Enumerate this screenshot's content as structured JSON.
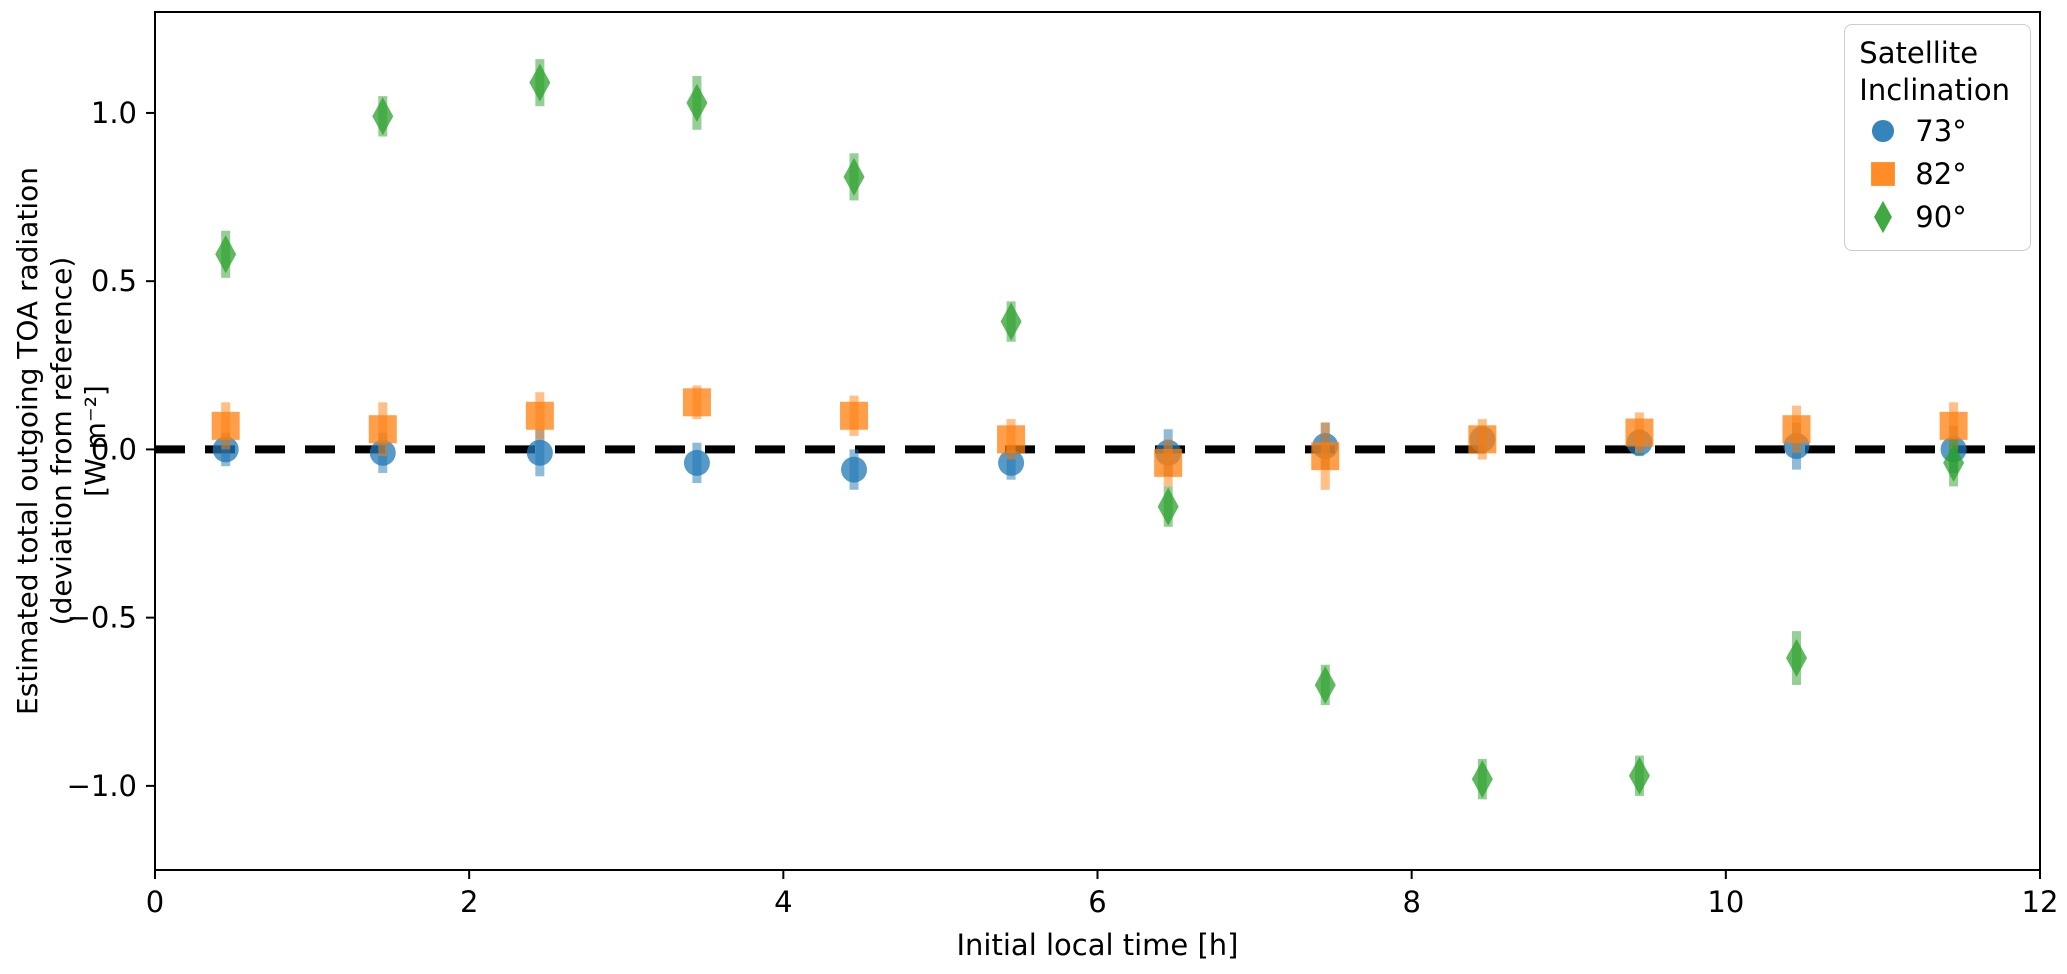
{
  "chart_data": {
    "type": "scatter",
    "title": "",
    "xlabel": "Initial local time [h]",
    "ylabel_lines": [
      "Estimated total outgoing TOA radiation",
      "(deviation from reference)",
      "[W m⁻²]"
    ],
    "xlim": [
      0,
      12
    ],
    "ylim": [
      -1.25,
      1.3
    ],
    "xticks": [
      {
        "v": 0,
        "label": "0"
      },
      {
        "v": 2,
        "label": "2"
      },
      {
        "v": 4,
        "label": "4"
      },
      {
        "v": 6,
        "label": "6"
      },
      {
        "v": 8,
        "label": "8"
      },
      {
        "v": 10,
        "label": "10"
      },
      {
        "v": 12,
        "label": "12"
      }
    ],
    "yticks": [
      {
        "v": -1.0,
        "label": "−1.0"
      },
      {
        "v": -0.5,
        "label": "−0.5"
      },
      {
        "v": 0.0,
        "label": "0.0"
      },
      {
        "v": 0.5,
        "label": "0.5"
      },
      {
        "v": 1.0,
        "label": "1.0"
      }
    ],
    "reference_line": {
      "y": 0,
      "style": "dashed",
      "color": "#000000"
    },
    "grid": false,
    "legend": {
      "position": "upper right",
      "title_lines": [
        "Satellite",
        "Inclination"
      ]
    },
    "x": [
      0.45,
      1.45,
      2.45,
      3.45,
      4.45,
      5.45,
      6.45,
      7.45,
      8.45,
      9.45,
      10.45,
      11.45
    ],
    "series": [
      {
        "name": "73°",
        "marker": "circle",
        "color": "#1f77b4",
        "y": [
          0.0,
          -0.01,
          -0.01,
          -0.04,
          -0.06,
          -0.04,
          -0.01,
          0.01,
          0.03,
          0.02,
          0.01,
          0.0
        ],
        "yerr": [
          0.05,
          0.06,
          0.07,
          0.06,
          0.06,
          0.05,
          0.07,
          0.07,
          0.04,
          0.04,
          0.07,
          0.07
        ]
      },
      {
        "name": "82°",
        "marker": "square",
        "color": "#ff7f0e",
        "y": [
          0.07,
          0.06,
          0.1,
          0.14,
          0.1,
          0.03,
          -0.04,
          -0.02,
          0.03,
          0.05,
          0.06,
          0.07
        ],
        "yerr": [
          0.07,
          0.08,
          0.07,
          0.05,
          0.06,
          0.06,
          0.07,
          0.1,
          0.06,
          0.06,
          0.07,
          0.07
        ]
      },
      {
        "name": "90°",
        "marker": "thin-diamond",
        "color": "#2ca02c",
        "y": [
          0.58,
          0.99,
          1.09,
          1.03,
          0.81,
          0.38,
          -0.17,
          -0.7,
          -0.98,
          -0.97,
          -0.62,
          -0.04
        ],
        "yerr": [
          0.07,
          0.06,
          0.07,
          0.08,
          0.07,
          0.06,
          0.06,
          0.06,
          0.06,
          0.06,
          0.08,
          0.07
        ]
      }
    ]
  }
}
